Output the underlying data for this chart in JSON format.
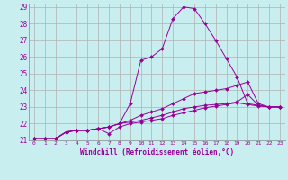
{
  "xlabel": "Windchill (Refroidissement éolien,°C)",
  "bg_color": "#c8eef0",
  "grid_color": "#b0b0b0",
  "line_color": "#990099",
  "xlim": [
    -0.5,
    23.5
  ],
  "ylim": [
    21.0,
    29.2
  ],
  "yticks": [
    21,
    22,
    23,
    24,
    25,
    26,
    27,
    28,
    29
  ],
  "xticks": [
    0,
    1,
    2,
    3,
    4,
    5,
    6,
    7,
    8,
    9,
    10,
    11,
    12,
    13,
    14,
    15,
    16,
    17,
    18,
    19,
    20,
    21,
    22,
    23
  ],
  "series": [
    [
      21.1,
      21.1,
      21.1,
      21.5,
      21.6,
      21.6,
      21.7,
      21.8,
      22.0,
      23.2,
      25.8,
      26.0,
      26.5,
      28.3,
      29.0,
      28.9,
      28.0,
      27.0,
      25.9,
      24.8,
      23.2,
      23.1,
      23.0,
      23.0
    ],
    [
      21.1,
      21.1,
      21.1,
      21.5,
      21.6,
      21.6,
      21.7,
      21.4,
      21.8,
      22.0,
      22.1,
      22.2,
      22.3,
      22.5,
      22.65,
      22.8,
      22.95,
      23.05,
      23.15,
      23.25,
      23.15,
      23.05,
      23.0,
      23.0
    ],
    [
      21.1,
      21.1,
      21.1,
      21.5,
      21.6,
      21.6,
      21.7,
      21.8,
      22.0,
      22.1,
      22.2,
      22.35,
      22.5,
      22.7,
      22.9,
      23.0,
      23.1,
      23.15,
      23.2,
      23.3,
      23.75,
      23.1,
      23.0,
      23.0
    ],
    [
      21.1,
      21.1,
      21.1,
      21.5,
      21.6,
      21.6,
      21.7,
      21.8,
      22.0,
      22.2,
      22.5,
      22.7,
      22.9,
      23.2,
      23.5,
      23.8,
      23.9,
      24.0,
      24.1,
      24.3,
      24.5,
      23.2,
      23.0,
      23.0
    ]
  ]
}
